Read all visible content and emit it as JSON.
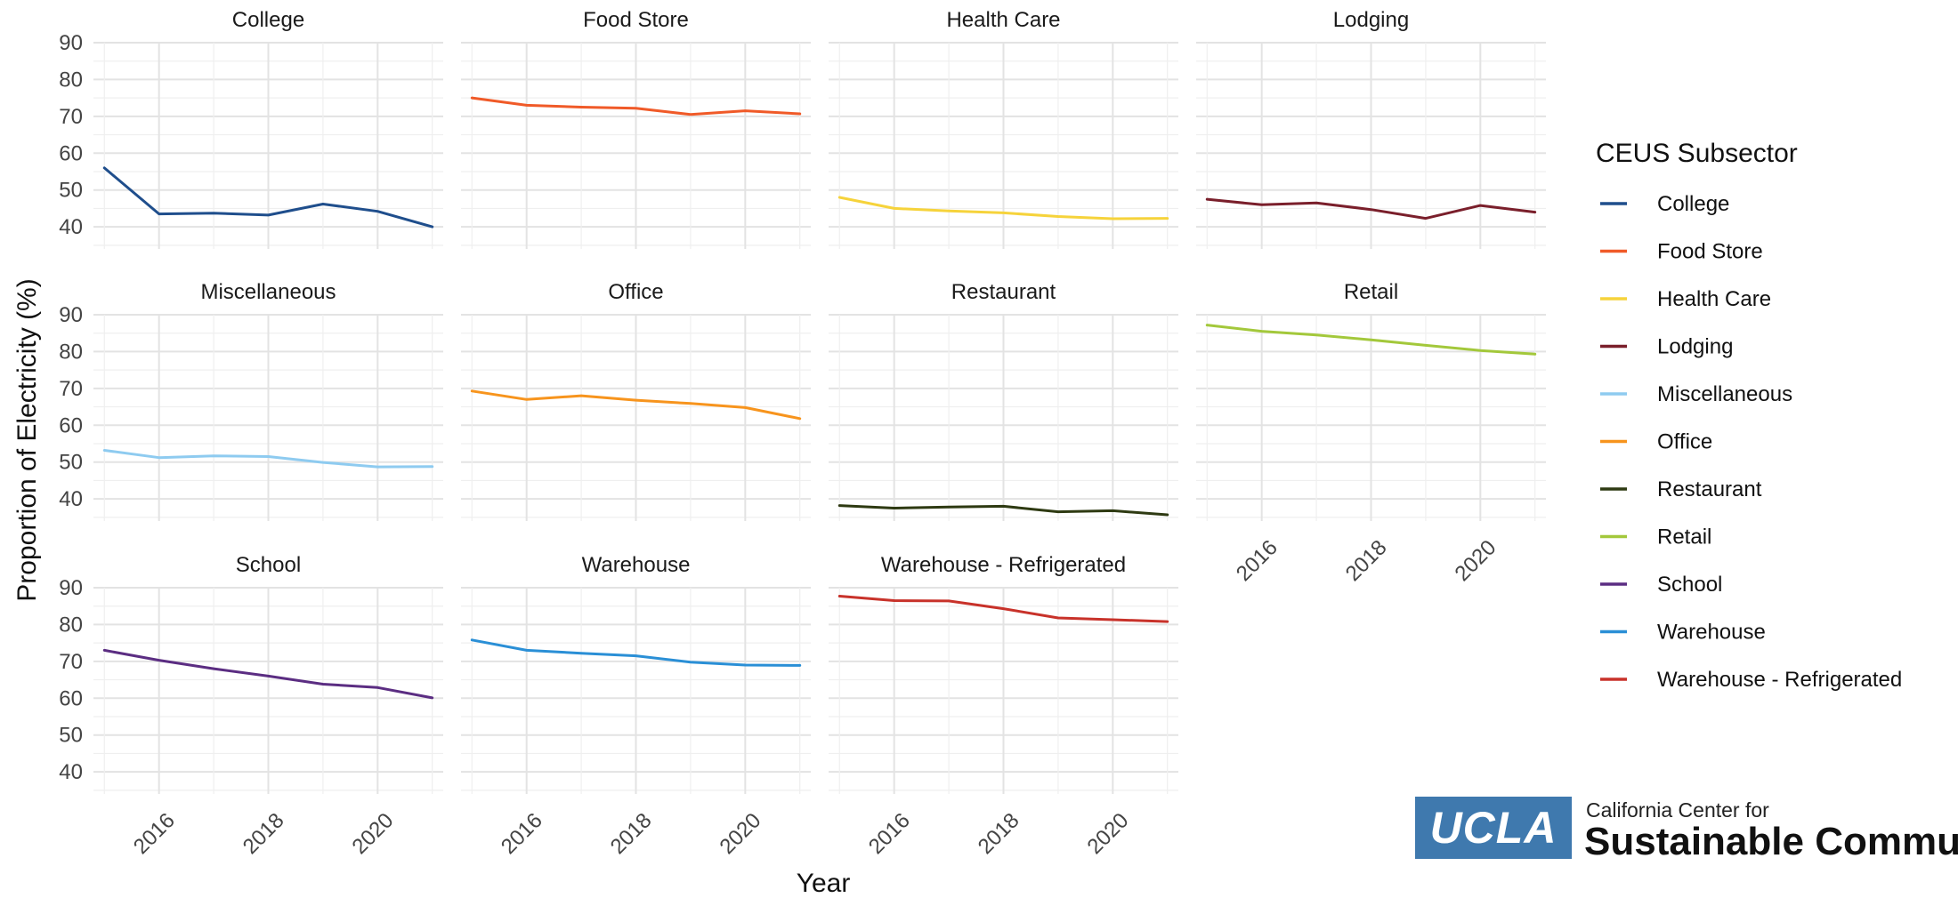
{
  "chart_data": {
    "type": "line",
    "ylabel": "Proportion of Electricity (%)",
    "xlabel": "Year",
    "ylim": [
      34,
      90
    ],
    "yticks": [
      40,
      50,
      60,
      70,
      80,
      90
    ],
    "xlim": [
      2014.8,
      2021.2
    ],
    "xticks": [
      2016,
      2018,
      2020
    ],
    "legend": {
      "title": "CEUS Subsector",
      "position": "right"
    },
    "x": [
      2015,
      2016,
      2017,
      2018,
      2019,
      2020,
      2021
    ],
    "series": [
      {
        "name": "College",
        "color": "#1f4e8c",
        "values": [
          56,
          43.5,
          43.7,
          43.2,
          46.2,
          44.2,
          40
        ]
      },
      {
        "name": "Food Store",
        "color": "#f05a28",
        "values": [
          75,
          73,
          72.5,
          72.2,
          70.5,
          71.5,
          70.7
        ]
      },
      {
        "name": "Health Care",
        "color": "#f6d33b",
        "values": [
          48,
          45,
          44.3,
          43.8,
          42.8,
          42.2,
          42.3
        ]
      },
      {
        "name": "Lodging",
        "color": "#7a1f2b",
        "values": [
          47.5,
          46,
          46.5,
          44.7,
          42.3,
          45.8,
          44
        ]
      },
      {
        "name": "Miscellaneous",
        "color": "#8ecbf0",
        "values": [
          53.2,
          51.2,
          51.7,
          51.5,
          49.9,
          48.7,
          48.8
        ]
      },
      {
        "name": "Office",
        "color": "#f7941d",
        "values": [
          69.3,
          67,
          68,
          66.8,
          65.9,
          64.8,
          61.8
        ]
      },
      {
        "name": "Restaurant",
        "color": "#2e3a12",
        "values": [
          38.2,
          37.5,
          37.8,
          38,
          36.5,
          36.8,
          35.7
        ]
      },
      {
        "name": "Retail",
        "color": "#a3c83b",
        "values": [
          87.2,
          85.5,
          84.5,
          83.2,
          81.7,
          80.3,
          79.3
        ]
      },
      {
        "name": "School",
        "color": "#5b2d82",
        "values": [
          73,
          70.3,
          68,
          66,
          63.8,
          62.9,
          60.1
        ]
      },
      {
        "name": "Warehouse",
        "color": "#2a8fd6",
        "values": [
          75.8,
          73,
          72.2,
          71.5,
          69.8,
          69,
          68.9
        ]
      },
      {
        "name": "Warehouse - Refrigerated",
        "color": "#c8322a",
        "values": [
          87.7,
          86.5,
          86.4,
          84.3,
          81.8,
          81.3,
          80.8
        ]
      }
    ]
  },
  "logo": {
    "mark": "UCLA",
    "line1": "California Center for",
    "line2": "Sustainable Communities"
  }
}
